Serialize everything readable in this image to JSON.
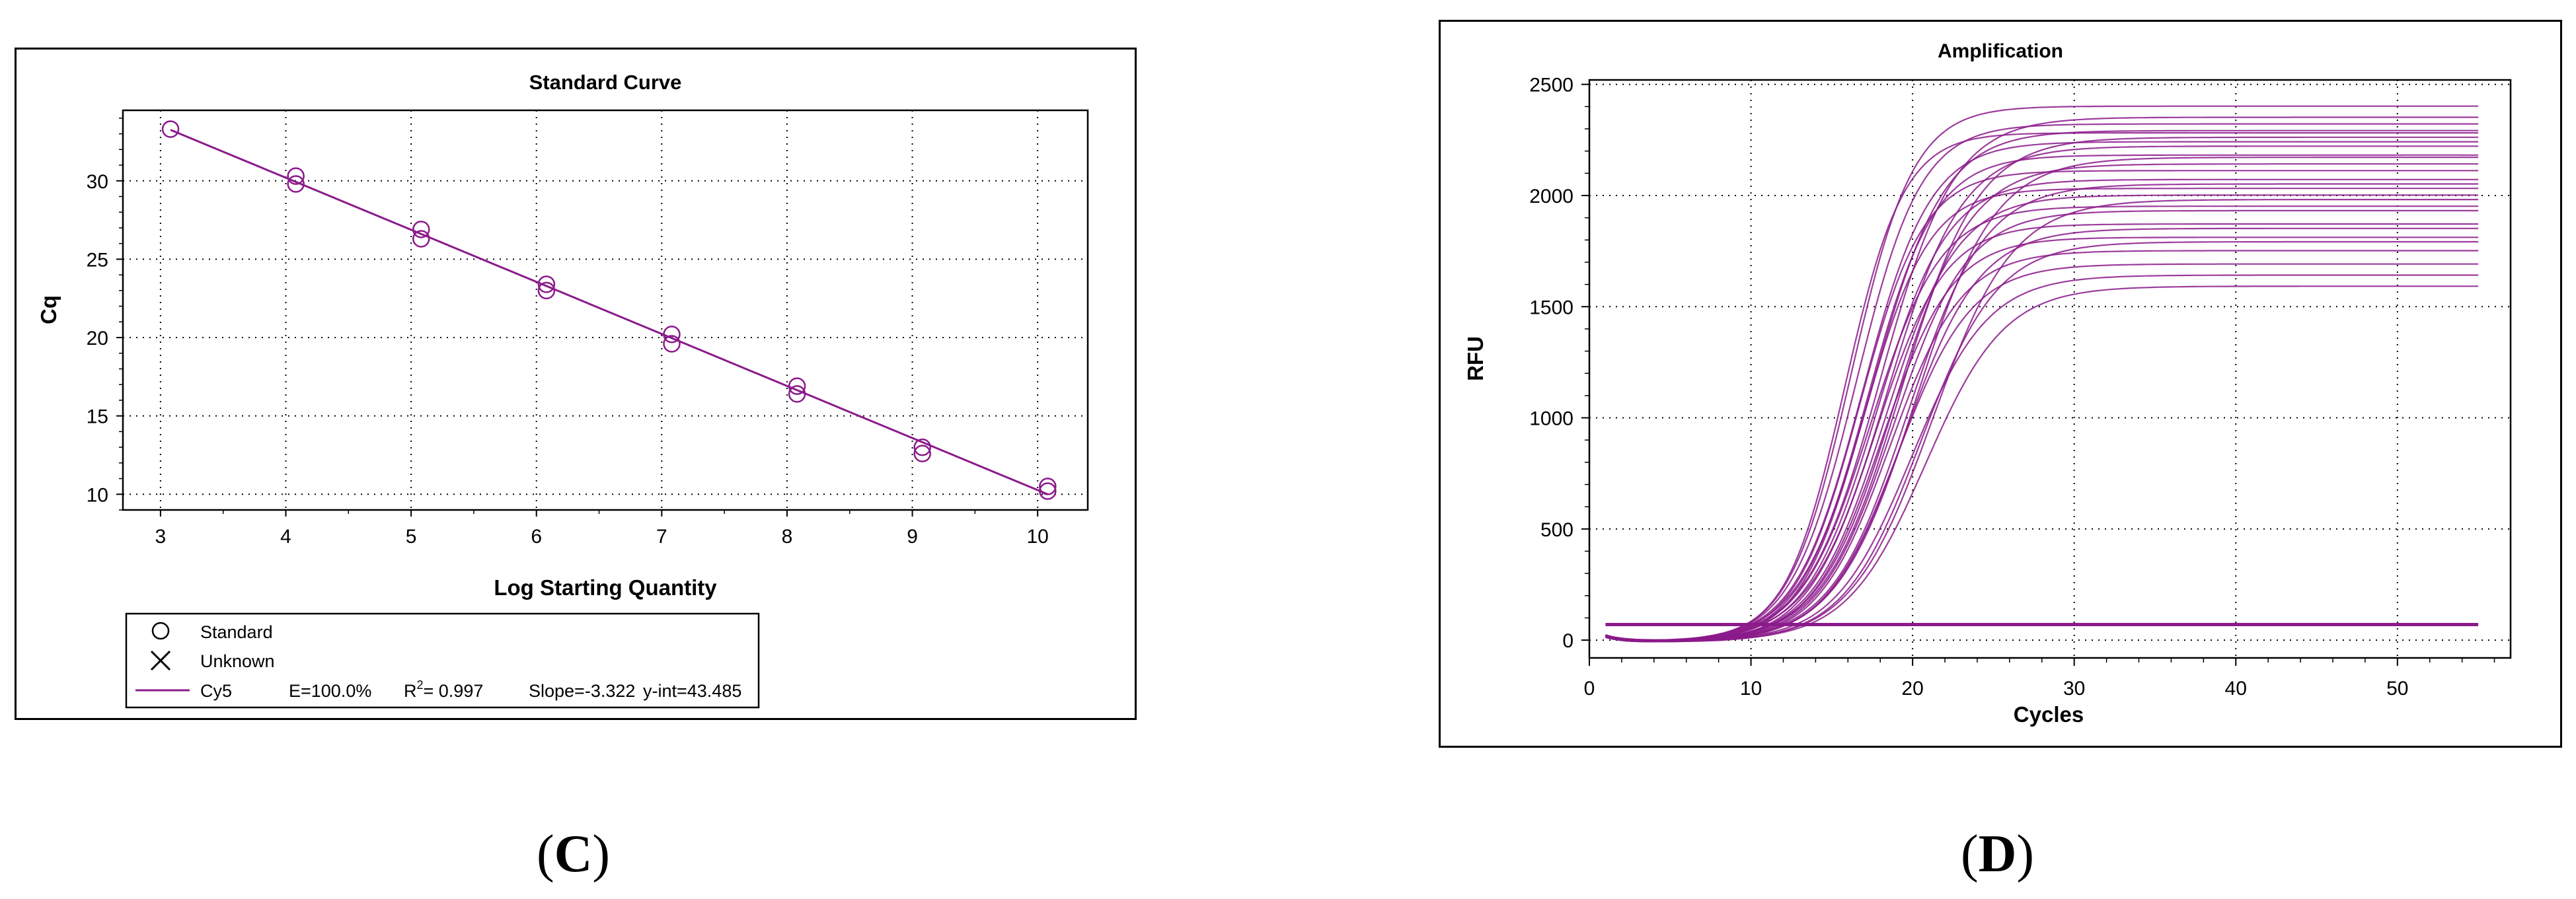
{
  "captions": [
    "C",
    "D"
  ],
  "chart_data": [
    {
      "type": "scatter",
      "title": "Standard Curve",
      "xlabel": "Log Starting Quantity",
      "ylabel": "Cq",
      "xlim": [
        2.7,
        10.4
      ],
      "ylim": [
        9,
        34.5
      ],
      "xticks": [
        3,
        4,
        5,
        6,
        7,
        8,
        9,
        10
      ],
      "yticks": [
        10,
        15,
        20,
        25,
        30
      ],
      "grid": true,
      "legend_position": "bottom-left",
      "series": [
        {
          "name": "Standard",
          "marker": "circle",
          "x": [
            3.08,
            4.08,
            4.08,
            5.08,
            5.08,
            6.08,
            6.08,
            7.08,
            7.08,
            8.08,
            8.08,
            9.08,
            9.08,
            10.08,
            10.08
          ],
          "y": [
            33.3,
            30.3,
            29.8,
            26.9,
            26.3,
            23.4,
            23.0,
            20.2,
            19.6,
            16.9,
            16.4,
            13.0,
            12.6,
            10.5,
            10.2
          ]
        },
        {
          "name": "Unknown",
          "marker": "x",
          "x": [],
          "y": []
        }
      ],
      "fit": {
        "name": "Cy5",
        "efficiency_label": "E=100.0%",
        "r2_prefix": "R",
        "r2_sup": "2",
        "r2_value": "= 0.997",
        "slope_label": "Slope=-3.322",
        "yint_label": "y-int=43.485",
        "slope": -3.322,
        "intercept": 43.485
      },
      "color": "#8b1a8b"
    },
    {
      "type": "line",
      "title": "Amplification",
      "xlabel": "Cycles",
      "ylabel": "RFU",
      "xlim": [
        0,
        57
      ],
      "ylim": [
        -80,
        2520
      ],
      "xticks": [
        0,
        10,
        20,
        30,
        40,
        50
      ],
      "yticks": [
        0,
        500,
        1000,
        1500,
        2000,
        2500
      ],
      "grid": true,
      "x_range": [
        1,
        55
      ],
      "threshold": 70,
      "color": "#8b1a8b",
      "curves": [
        {
          "midpoint": 15.8,
          "plateau": 2290,
          "steepness": 0.55
        },
        {
          "midpoint": 16.2,
          "plateau": 2410,
          "steepness": 0.52
        },
        {
          "midpoint": 16.5,
          "plateau": 2330,
          "steepness": 0.5
        },
        {
          "midpoint": 16.7,
          "plateau": 2120,
          "steepness": 0.5
        },
        {
          "midpoint": 16.9,
          "plateau": 2250,
          "steepness": 0.48
        },
        {
          "midpoint": 17.0,
          "plateau": 2040,
          "steepness": 0.5
        },
        {
          "midpoint": 17.2,
          "plateau": 2190,
          "steepness": 0.48
        },
        {
          "midpoint": 17.4,
          "plateau": 1960,
          "steepness": 0.46
        },
        {
          "midpoint": 17.5,
          "plateau": 2300,
          "steepness": 0.45
        },
        {
          "midpoint": 17.7,
          "plateau": 1880,
          "steepness": 0.47
        },
        {
          "midpoint": 17.8,
          "plateau": 2080,
          "steepness": 0.46
        },
        {
          "midpoint": 18.0,
          "plateau": 2360,
          "steepness": 0.44
        },
        {
          "midpoint": 18.1,
          "plateau": 1820,
          "steepness": 0.46
        },
        {
          "midpoint": 18.3,
          "plateau": 2010,
          "steepness": 0.45
        },
        {
          "midpoint": 18.4,
          "plateau": 2230,
          "steepness": 0.43
        },
        {
          "midpoint": 18.6,
          "plateau": 1760,
          "steepness": 0.45
        },
        {
          "midpoint": 18.8,
          "plateau": 1940,
          "steepness": 0.44
        },
        {
          "midpoint": 18.9,
          "plateau": 2150,
          "steepness": 0.43
        },
        {
          "midpoint": 19.1,
          "plateau": 1700,
          "steepness": 0.44
        },
        {
          "midpoint": 19.3,
          "plateau": 2270,
          "steepness": 0.42
        },
        {
          "midpoint": 19.5,
          "plateau": 1860,
          "steepness": 0.43
        },
        {
          "midpoint": 19.7,
          "plateau": 2060,
          "steepness": 0.42
        },
        {
          "midpoint": 19.9,
          "plateau": 1650,
          "steepness": 0.42
        },
        {
          "midpoint": 20.2,
          "plateau": 2180,
          "steepness": 0.41
        },
        {
          "midpoint": 20.5,
          "plateau": 1800,
          "steepness": 0.42
        },
        {
          "midpoint": 20.8,
          "plateau": 1600,
          "steepness": 0.41
        },
        {
          "midpoint": 21.2,
          "plateau": 1990,
          "steepness": 0.4
        }
      ]
    }
  ]
}
